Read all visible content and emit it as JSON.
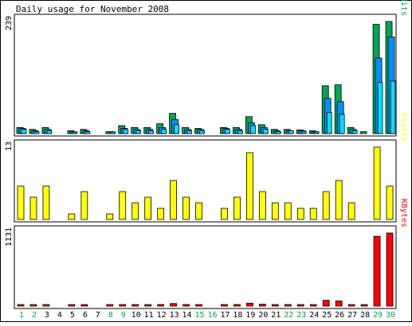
{
  "chart_data": {
    "type": "bar",
    "title": "Daily usage for November 2008",
    "x": [
      1,
      2,
      3,
      4,
      5,
      6,
      7,
      8,
      9,
      10,
      11,
      12,
      13,
      14,
      15,
      16,
      17,
      18,
      19,
      20,
      21,
      22,
      23,
      24,
      25,
      26,
      27,
      28,
      29,
      30
    ],
    "weekend_days": [
      1,
      2,
      8,
      9,
      15,
      16,
      22,
      23,
      29,
      30
    ],
    "panels": [
      {
        "id": "pages_files_hits",
        "max_label": "239",
        "ylim": [
          0,
          239
        ],
        "legend": [
          "Pages",
          "Files",
          "Hits"
        ],
        "series": [
          {
            "name": "Hits",
            "color": "#00a650",
            "values": [
              13,
              9,
              13,
              0,
              6,
              9,
              0,
              4,
              17,
              13,
              13,
              21,
              43,
              13,
              11,
              0,
              13,
              13,
              36,
              19,
              9,
              9,
              8,
              6,
              102,
              104,
              13,
              4,
              233,
              239
            ]
          },
          {
            "name": "Files",
            "color": "#0091ff",
            "values": [
              11,
              6,
              9,
              0,
              4,
              6,
              0,
              4,
              11,
              9,
              9,
              13,
              30,
              9,
              9,
              0,
              11,
              9,
              23,
              13,
              6,
              6,
              6,
              4,
              75,
              68,
              9,
              0,
              161,
              206
            ]
          },
          {
            "name": "Pages",
            "color": "#00e0ff",
            "values": [
              9,
              4,
              6,
              0,
              2,
              4,
              0,
              2,
              9,
              6,
              6,
              9,
              19,
              6,
              6,
              0,
              9,
              6,
              17,
              9,
              4,
              6,
              4,
              2,
              45,
              41,
              6,
              0,
              109,
              112
            ]
          }
        ]
      },
      {
        "id": "visits",
        "max_label": "13",
        "ylim": [
          0,
          13
        ],
        "legend": [
          "Visits"
        ],
        "series": [
          {
            "name": "Visits",
            "color": "#ffff00",
            "values": [
              6,
              4,
              6,
              0,
              1,
              5,
              0,
              1,
              5,
              3,
              4,
              2,
              7,
              4,
              3,
              0,
              2,
              4,
              12,
              5,
              3,
              3,
              2,
              2,
              5,
              7,
              3,
              0,
              13,
              6
            ]
          }
        ]
      },
      {
        "id": "kbytes",
        "max_label": "1131",
        "ylim": [
          0,
          1131
        ],
        "legend": [
          "KBytes"
        ],
        "series": [
          {
            "name": "KBytes",
            "color": "#ff0000",
            "values": [
              15,
              10,
              15,
              0,
              15,
              15,
              0,
              15,
              15,
              15,
              15,
              25,
              40,
              25,
              15,
              0,
              25,
              25,
              45,
              30,
              25,
              25,
              25,
              15,
              90,
              80,
              15,
              10,
              1080,
              1131
            ]
          }
        ]
      }
    ]
  },
  "colors": {
    "weekday_label": "#000000",
    "weekend_label": "#00a650",
    "frame": "#000000"
  }
}
